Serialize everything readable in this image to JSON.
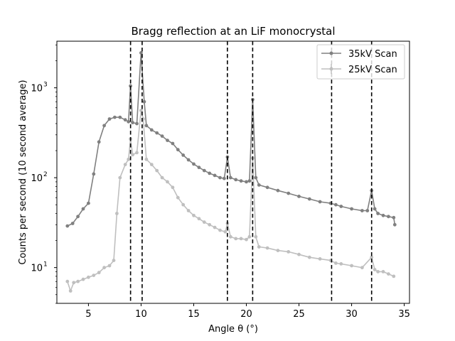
{
  "chart_data": {
    "type": "line",
    "title": "Bragg reflection at an LiF monocrystal",
    "xlabel": "Angle θ (°)",
    "ylabel": "Counts per second (10 second average)",
    "xlim": [
      2,
      35.5
    ],
    "ylim": [
      4,
      3300
    ],
    "yscale": "log",
    "grid": false,
    "legend_position": "top-right",
    "xticks": [
      5,
      10,
      15,
      20,
      25,
      30,
      35
    ],
    "yticks": [
      {
        "value": 10,
        "base": "10",
        "exp": "1"
      },
      {
        "value": 100,
        "base": "10",
        "exp": "2"
      },
      {
        "value": 1000,
        "base": "10",
        "exp": "3"
      }
    ],
    "vlines": [
      9.0,
      10.1,
      18.2,
      20.6,
      28.1,
      31.9
    ],
    "series": [
      {
        "name": "35kV Scan",
        "color": "#808080",
        "points": [
          [
            3.0,
            29
          ],
          [
            3.5,
            31
          ],
          [
            4.0,
            37
          ],
          [
            4.5,
            45
          ],
          [
            5.0,
            52
          ],
          [
            5.5,
            110
          ],
          [
            6.0,
            250
          ],
          [
            6.5,
            380
          ],
          [
            7.0,
            450
          ],
          [
            7.5,
            470
          ],
          [
            8.0,
            470
          ],
          [
            8.5,
            440
          ],
          [
            8.8,
            420
          ],
          [
            9.0,
            1050
          ],
          [
            9.2,
            410
          ],
          [
            9.6,
            400
          ],
          [
            10.0,
            2450
          ],
          [
            10.3,
            700
          ],
          [
            10.5,
            380
          ],
          [
            11.0,
            340
          ],
          [
            11.5,
            315
          ],
          [
            12.0,
            290
          ],
          [
            12.5,
            260
          ],
          [
            13.0,
            240
          ],
          [
            13.5,
            205
          ],
          [
            14.0,
            178
          ],
          [
            14.5,
            158
          ],
          [
            15.0,
            142
          ],
          [
            15.5,
            130
          ],
          [
            16.0,
            120
          ],
          [
            16.5,
            112
          ],
          [
            17.0,
            106
          ],
          [
            17.5,
            100
          ],
          [
            17.9,
            98
          ],
          [
            18.2,
            170
          ],
          [
            18.5,
            100
          ],
          [
            19.0,
            95
          ],
          [
            19.5,
            92
          ],
          [
            20.0,
            90
          ],
          [
            20.3,
            92
          ],
          [
            20.6,
            740
          ],
          [
            20.9,
            100
          ],
          [
            21.2,
            83
          ],
          [
            22.0,
            78
          ],
          [
            23.0,
            72
          ],
          [
            24.0,
            67
          ],
          [
            25.0,
            62
          ],
          [
            26.0,
            58
          ],
          [
            27.0,
            54
          ],
          [
            28.0,
            52
          ],
          [
            28.5,
            50
          ],
          [
            29.0,
            48
          ],
          [
            30.0,
            45
          ],
          [
            31.0,
            43
          ],
          [
            31.5,
            43
          ],
          [
            31.9,
            72
          ],
          [
            32.2,
            45
          ],
          [
            32.5,
            40
          ],
          [
            33.0,
            38
          ],
          [
            33.5,
            37
          ],
          [
            34.0,
            36
          ],
          [
            34.1,
            30
          ]
        ]
      },
      {
        "name": "25kV Scan",
        "color": "#bfbfbf",
        "points": [
          [
            3.0,
            7
          ],
          [
            3.3,
            5.5
          ],
          [
            3.6,
            6.8
          ],
          [
            4.0,
            7
          ],
          [
            4.5,
            7.4
          ],
          [
            5.0,
            7.8
          ],
          [
            5.5,
            8.2
          ],
          [
            6.0,
            8.8
          ],
          [
            6.5,
            10
          ],
          [
            7.0,
            10.5
          ],
          [
            7.4,
            12
          ],
          [
            7.7,
            40
          ],
          [
            8.0,
            100
          ],
          [
            8.5,
            140
          ],
          [
            8.8,
            160
          ],
          [
            9.0,
            270
          ],
          [
            9.2,
            180
          ],
          [
            9.6,
            190
          ],
          [
            10.0,
            560
          ],
          [
            10.2,
            450
          ],
          [
            10.5,
            160
          ],
          [
            11.0,
            140
          ],
          [
            11.5,
            120
          ],
          [
            12.0,
            100
          ],
          [
            12.5,
            90
          ],
          [
            13.0,
            78
          ],
          [
            13.5,
            60
          ],
          [
            14.0,
            50
          ],
          [
            14.5,
            43
          ],
          [
            15.0,
            38
          ],
          [
            15.5,
            35
          ],
          [
            16.0,
            32
          ],
          [
            16.5,
            30
          ],
          [
            17.0,
            28
          ],
          [
            17.5,
            26
          ],
          [
            18.0,
            25
          ],
          [
            18.2,
            31
          ],
          [
            18.5,
            22
          ],
          [
            19.0,
            21
          ],
          [
            19.5,
            21
          ],
          [
            20.0,
            20.5
          ],
          [
            20.3,
            22
          ],
          [
            20.6,
            165
          ],
          [
            20.9,
            22
          ],
          [
            21.2,
            17
          ],
          [
            22.0,
            16.5
          ],
          [
            23.0,
            15.5
          ],
          [
            24.0,
            15
          ],
          [
            25.0,
            14
          ],
          [
            26.0,
            13
          ],
          [
            27.0,
            12.5
          ],
          [
            28.0,
            12
          ],
          [
            28.5,
            11.2
          ],
          [
            29.0,
            11
          ],
          [
            30.0,
            10.5
          ],
          [
            31.0,
            10
          ],
          [
            31.9,
            13
          ],
          [
            32.2,
            9.5
          ],
          [
            32.5,
            9
          ],
          [
            33.0,
            9
          ],
          [
            33.5,
            8.5
          ],
          [
            34.0,
            8
          ]
        ]
      }
    ]
  }
}
